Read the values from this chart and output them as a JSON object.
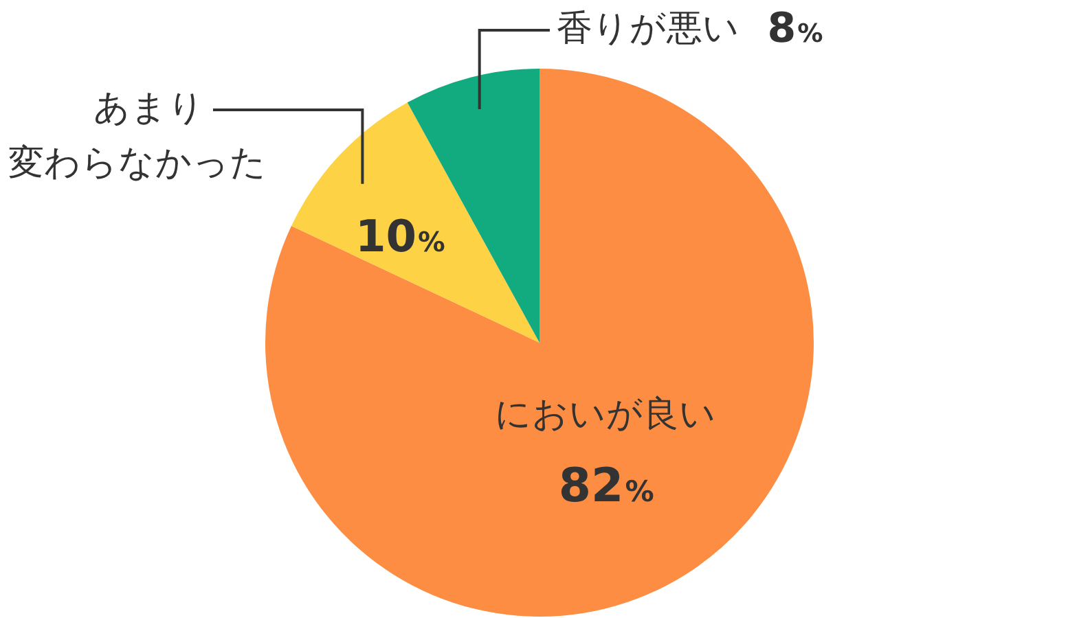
{
  "chart_data": {
    "type": "pie",
    "categories": [
      "においが良い",
      "あまり変わらなかった",
      "香りが悪い"
    ],
    "values": [
      82,
      10,
      8
    ],
    "colors": [
      "#fd8d43",
      "#fdd245",
      "#12aa7f"
    ],
    "value_labels": [
      "82%",
      "10%",
      "8%"
    ],
    "legend": false
  }
}
